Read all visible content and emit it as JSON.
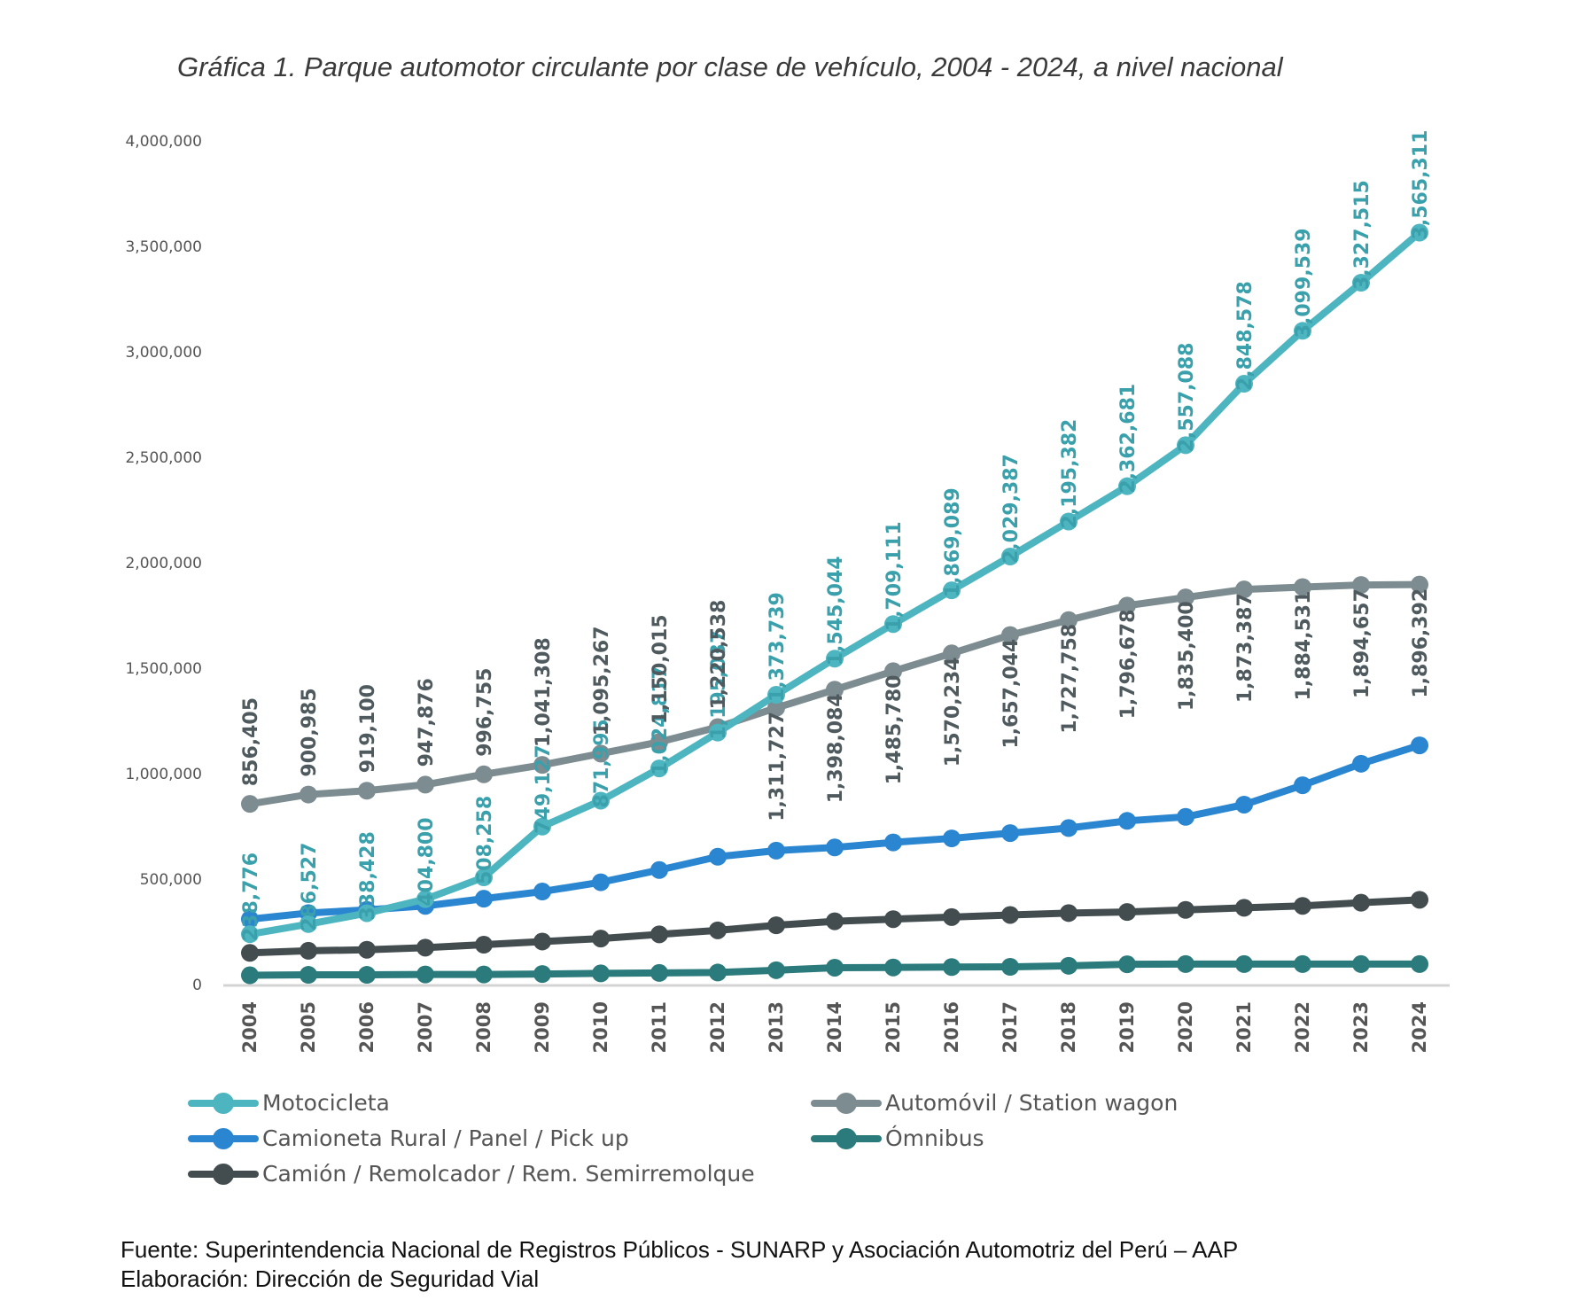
{
  "chart_data": {
    "type": "line",
    "title": "Gráfica 1. Parque automotor circulante por clase de vehículo, 2004 - 2024, a nivel nacional",
    "xlabel": "",
    "ylabel": "",
    "ylim": [
      0,
      4000000
    ],
    "yticks": [
      0,
      500000,
      1000000,
      1500000,
      2000000,
      2500000,
      3000000,
      3500000,
      4000000
    ],
    "ytick_labels": [
      "0",
      "500,000",
      "1,000,000",
      "1,500,000",
      "2,000,000",
      "2,500,000",
      "3,000,000",
      "3,500,000",
      "4,000,000"
    ],
    "grid": false,
    "legend_position": "bottom",
    "categories": [
      "2004",
      "2005",
      "2006",
      "2007",
      "2008",
      "2009",
      "2010",
      "2011",
      "2012",
      "2013",
      "2014",
      "2015",
      "2016",
      "2017",
      "2018",
      "2019",
      "2020",
      "2021",
      "2022",
      "2023",
      "2024"
    ],
    "series": [
      {
        "name": "Motocicleta",
        "color": "#4db5c0",
        "label_color": "#3aa0ab",
        "labeled": true,
        "values": [
          238776,
          286527,
          338428,
          404800,
          508258,
          749127,
          871995,
          1024817,
          1195037,
          1373739,
          1545044,
          1709111,
          1869089,
          2029387,
          2195382,
          2362681,
          2557088,
          2848578,
          3099539,
          3327515,
          3565311
        ],
        "labels": [
          "238,776",
          "286,527",
          "338,428",
          "404,800",
          "508,258",
          "749,127",
          "871,995",
          "1,024,817",
          "1,195,037",
          "1,373,739",
          "1,545,044",
          "1,709,111",
          "1,869,089",
          "2,029,387",
          "2,195,382",
          "2,362,681",
          "2,557,088",
          "2,848,578",
          "3,099,539",
          "3,327,515",
          "3,565,311"
        ]
      },
      {
        "name": "Automóvil / Station wagon",
        "color": "#7d8c90",
        "label_color": "#4f5a5e",
        "labeled": true,
        "values": [
          856405,
          900985,
          919100,
          947876,
          996755,
          1041308,
          1095267,
          1150015,
          1220538,
          1311727,
          1398084,
          1485780,
          1570234,
          1657044,
          1727758,
          1796678,
          1835400,
          1873387,
          1884531,
          1894657,
          1896392
        ],
        "labels": [
          "856,405",
          "900,985",
          "919,100",
          "947,876",
          "996,755",
          "1,041,308",
          "1,095,267",
          "1,150,015",
          "1,220,538",
          "1,311,727",
          "1,398,084",
          "1,485,780",
          "1,570,234",
          "1,657,044",
          "1,727,758",
          "1,796,678",
          "1,835,400",
          "1,873,387",
          "1,884,531",
          "1,894,657",
          "1,896,392"
        ]
      },
      {
        "name": "Camioneta Rural / Panel / Pick up",
        "color": "#2a86d0",
        "labeled": false,
        "values": [
          310000,
          339000,
          354000,
          373000,
          407000,
          441000,
          485000,
          543000,
          606000,
          635000,
          650000,
          674000,
          693000,
          718000,
          742000,
          776000,
          795000,
          853000,
          945000,
          1047000,
          1134000
        ]
      },
      {
        "name": "Ómnibus",
        "color": "#2b7a7c",
        "labeled": false,
        "values": [
          44000,
          46000,
          46000,
          48000,
          48000,
          50000,
          53000,
          55000,
          57000,
          68000,
          80000,
          81000,
          83000,
          84000,
          89000,
          96000,
          97000,
          97000,
          97000,
          97000,
          97000
        ]
      },
      {
        "name": "Camión / Remolcador / Rem. Semirremolque",
        "color": "#434d50",
        "labeled": false,
        "values": [
          150000,
          160000,
          165000,
          175000,
          189000,
          204000,
          218000,
          238000,
          257000,
          281000,
          300000,
          310000,
          320000,
          330000,
          339000,
          344000,
          354000,
          364000,
          373000,
          388000,
          402000
        ]
      }
    ]
  },
  "legend": {
    "items": [
      {
        "label": "Motocicleta",
        "color": "#4db5c0"
      },
      {
        "label": "Automóvil / Station wagon",
        "color": "#7d8c90"
      },
      {
        "label": "Camioneta Rural / Panel / Pick up",
        "color": "#2a86d0"
      },
      {
        "label": "Ómnibus",
        "color": "#2b7a7c"
      },
      {
        "label": "Camión / Remolcador / Rem. Semirremolque",
        "color": "#434d50"
      }
    ]
  },
  "footer": {
    "source": "Fuente: Superintendencia Nacional de Registros Públicos - SUNARP y Asociación Automotriz del Perú – AAP",
    "elaboration": "Elaboración: Dirección de Seguridad Vial"
  }
}
